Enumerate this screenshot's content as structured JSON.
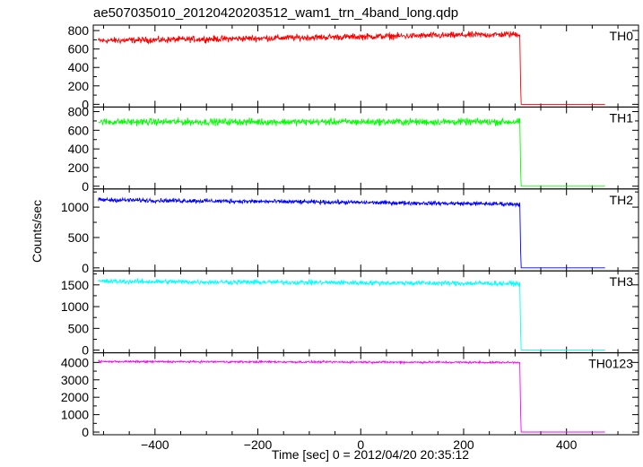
{
  "chart_data": {
    "type": "line",
    "title": "ae507035010_20120420203512_wam1_trn_4band_long.qdp",
    "xlabel": "Time [sec] 0 = 2012/04/20 20:35:12",
    "ylabel": "Counts/sec",
    "xlim": [
      -520,
      540
    ],
    "xticks": [
      -400,
      -200,
      0,
      200,
      400
    ],
    "xticklabels": [
      "−400",
      "−200",
      "0",
      "200",
      "400"
    ],
    "drop_time": 310,
    "data_end": 475,
    "grid": false,
    "panels": [
      {
        "name": "TH0",
        "color": "#ff0000",
        "ylim": [
          -10,
          840
        ],
        "yticks": [
          0,
          200,
          400,
          600,
          800
        ],
        "level_start": 690,
        "level_end": 760,
        "noise": 28
      },
      {
        "name": "TH1",
        "color": "#00ff00",
        "ylim": [
          -10,
          830
        ],
        "yticks": [
          0,
          200,
          400,
          600,
          800
        ],
        "level_start": 690,
        "level_end": 690,
        "noise": 30
      },
      {
        "name": "TH2",
        "color": "#0000ff",
        "ylim": [
          -20,
          1270
        ],
        "yticks": [
          0,
          500,
          1000
        ],
        "level_start": 1120,
        "level_end": 1050,
        "noise": 28
      },
      {
        "name": "TH3",
        "color": "#00ffff",
        "ylim": [
          -20,
          1780
        ],
        "yticks": [
          0,
          500,
          1000,
          1500
        ],
        "level_start": 1580,
        "level_end": 1530,
        "noise": 45
      },
      {
        "name": "TH0123",
        "color": "#ff00ff",
        "ylim": [
          -50,
          4450
        ],
        "yticks": [
          0,
          1000,
          2000,
          3000,
          4000
        ],
        "level_start": 4050,
        "level_end": 4000,
        "noise": 45
      }
    ]
  }
}
